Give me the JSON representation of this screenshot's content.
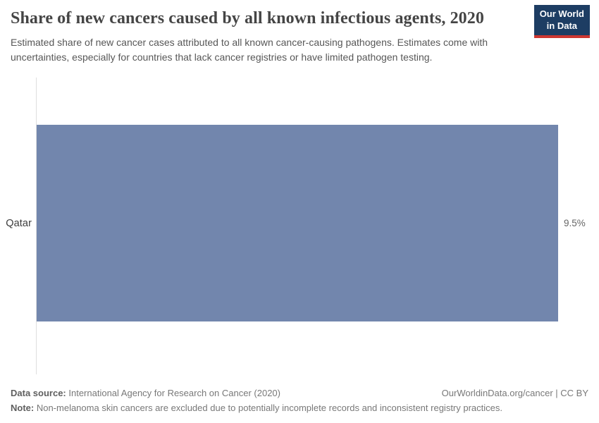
{
  "header": {
    "title": "Share of new cancers caused by all known infectious agents, 2020",
    "subtitle": "Estimated share of new cancer cases attributed to all known cancer-causing pathogens. Estimates come with uncertainties, especially for countries that lack cancer registries or have limited pathogen testing.",
    "logo": {
      "line1": "Our World",
      "line2": "in Data",
      "background_color": "#1d3d63",
      "underline_color": "#cd3731"
    }
  },
  "chart_data": {
    "type": "bar",
    "orientation": "horizontal",
    "categories": [
      "Qatar"
    ],
    "values": [
      9.5
    ],
    "value_labels": [
      "9.5%"
    ],
    "title": "Share of new cancers caused by all known infectious agents, 2020",
    "xlabel": "",
    "ylabel": "",
    "xlim": [
      0,
      9.5
    ],
    "bar_color": "#7286ad",
    "grid": false,
    "legend": "none"
  },
  "footer": {
    "data_source_label": "Data source:",
    "data_source_text": " International Agency for Research on Cancer (2020)",
    "rights_text": "OurWorldinData.org/cancer | CC BY",
    "note_label": "Note:",
    "note_text": " Non-melanoma skin cancers are excluded due to potentially incomplete records and inconsistent registry practices."
  }
}
